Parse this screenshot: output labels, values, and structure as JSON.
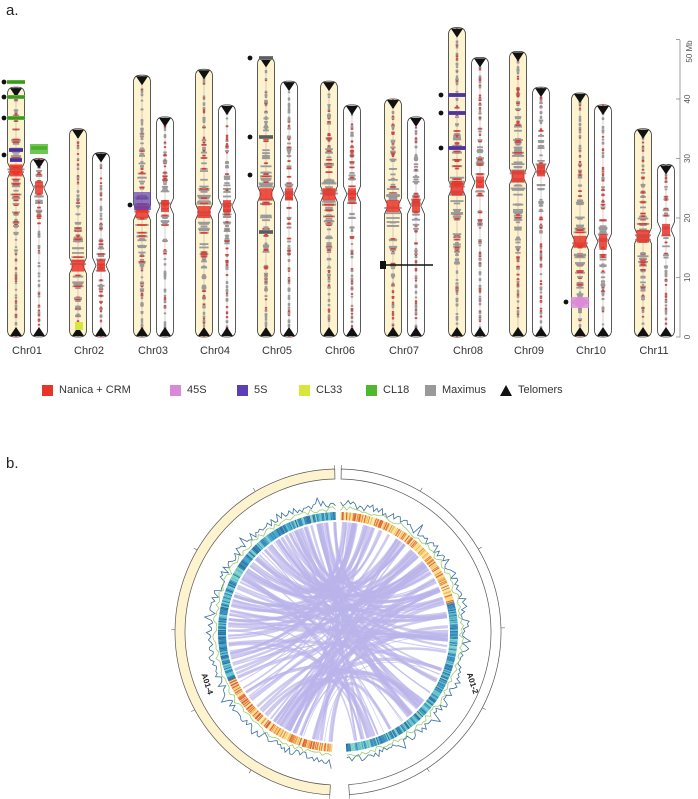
{
  "panel_a": {
    "label": "a.",
    "axis_unit": "50 Mb",
    "axis_ticks": [
      "0",
      "10",
      "20",
      "30",
      "40"
    ],
    "chromosomes": [
      {
        "name": "Chr01",
        "len_a": 42,
        "len_b": 30,
        "cen_a": 28,
        "cen_b": 25
      },
      {
        "name": "Chr02",
        "len_a": 35,
        "len_b": 31,
        "cen_a": 12,
        "cen_b": 12
      },
      {
        "name": "Chr03",
        "len_a": 44,
        "len_b": 37,
        "cen_a": 21,
        "cen_b": 22
      },
      {
        "name": "Chr04",
        "len_a": 45,
        "len_b": 39,
        "cen_a": 21,
        "cen_b": 22
      },
      {
        "name": "Chr05",
        "len_a": 47,
        "len_b": 43,
        "cen_a": 24,
        "cen_b": 24
      },
      {
        "name": "Chr06",
        "len_a": 43,
        "len_b": 39,
        "cen_a": 24,
        "cen_b": 24
      },
      {
        "name": "Chr07",
        "len_a": 40,
        "len_b": 37,
        "cen_a": 22,
        "cen_b": 22
      },
      {
        "name": "Chr08",
        "len_a": 52,
        "len_b": 47,
        "cen_a": 25,
        "cen_b": 26
      },
      {
        "name": "Chr09",
        "len_a": 48,
        "len_b": 42,
        "cen_a": 27,
        "cen_b": 28
      },
      {
        "name": "Chr10",
        "len_a": 41,
        "len_b": 39,
        "cen_a": 16,
        "cen_b": 16
      },
      {
        "name": "Chr11",
        "len_a": 35,
        "len_b": 29,
        "cen_a": 17,
        "cen_b": 18
      }
    ],
    "colors": {
      "nanica": "#e8352a",
      "s45": "#d98ad6",
      "s5": "#5b3fb5",
      "cl33": "#d6e63a",
      "cl18": "#4fb82e",
      "maximus": "#9a9a9a",
      "telomer": "#111111",
      "chr_fill": "#fdf3cf"
    }
  },
  "legend": [
    {
      "label": "Nanica + CRM",
      "color": "#e8352a",
      "shape": "square"
    },
    {
      "label": "45S",
      "color": "#d98ad6",
      "shape": "square"
    },
    {
      "label": "5S",
      "color": "#5b3fb5",
      "shape": "square"
    },
    {
      "label": "CL33",
      "color": "#d6e63a",
      "shape": "square"
    },
    {
      "label": "CL18",
      "color": "#4fb82e",
      "shape": "square"
    },
    {
      "label": "Maximus",
      "color": "#9a9a9a",
      "shape": "square"
    },
    {
      "label": "Telomers",
      "color": "#111111",
      "shape": "triangle"
    }
  ],
  "panel_b": {
    "label": "b.",
    "segments": [
      {
        "name": "A01-4",
        "fill": "#fdf3cf"
      },
      {
        "name": "A01-2",
        "fill": "#ffffff"
      }
    ],
    "link_color": "#b9b4ea"
  }
}
